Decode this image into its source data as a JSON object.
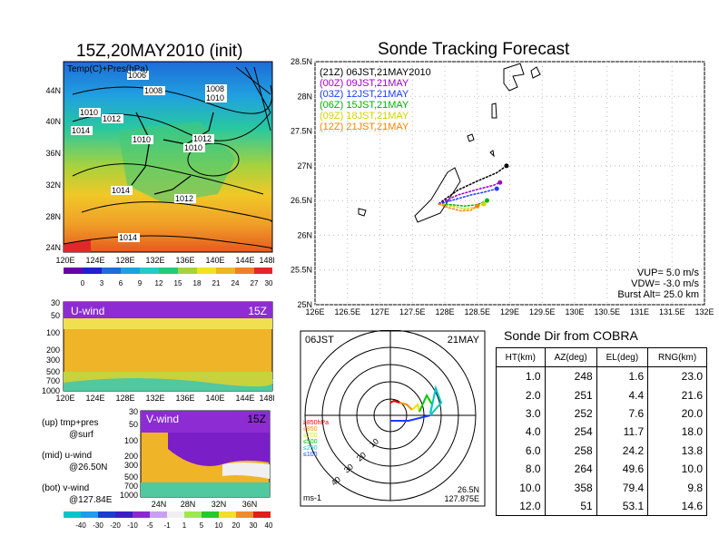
{
  "left_title": "15Z,20MAY2010 (init)",
  "map_panel": {
    "label": "Temp(C)+Pres(hPa)",
    "lat_ticks": [
      "44N",
      "40N",
      "36N",
      "32N",
      "28N",
      "24N"
    ],
    "lon_ticks": [
      "120E",
      "124E",
      "128E",
      "132E",
      "136E",
      "140E",
      "144E",
      "148E"
    ],
    "isobar_labels": [
      "1006",
      "1008",
      "1008",
      "1010",
      "1010",
      "1012",
      "1014",
      "1010",
      "1012",
      "1010",
      "1014",
      "1012",
      "1014"
    ],
    "colorbar_ticks": [
      "0",
      "3",
      "6",
      "9",
      "12",
      "15",
      "18",
      "21",
      "24",
      "27",
      "30"
    ]
  },
  "uwind_panel": {
    "label": "U-wind",
    "time": "15Z",
    "p_ticks": [
      "30",
      "50",
      "100",
      "200",
      "300",
      "500",
      "700",
      "1000"
    ],
    "lon_ticks": [
      "120E",
      "124E",
      "128E",
      "132E",
      "136E",
      "140E",
      "144E",
      "148E"
    ]
  },
  "vwind_panel": {
    "label": "V-wind",
    "time": "15Z",
    "p_ticks": [
      "30",
      "50",
      "100",
      "200",
      "300",
      "500",
      "700",
      "1000"
    ],
    "lat_ticks": [
      "24N",
      "28N",
      "32N",
      "36N"
    ]
  },
  "notes": [
    "(up) tmp+pres",
    "@surf",
    "(mid) u-wind",
    "@26.50N",
    "(bot) v-wind",
    "@127.84E"
  ],
  "wind_colorbar_ticks": [
    "-40",
    "-30",
    "-20",
    "-10",
    "-5",
    "-1",
    "1",
    "5",
    "10",
    "20",
    "30",
    "40"
  ],
  "track": {
    "title": "Sonde Tracking Forecast",
    "legend": [
      {
        "tag": "(21Z)",
        "text": "06JST,21MAY2010",
        "color": "#000000"
      },
      {
        "tag": "(00Z)",
        "text": "09JST,21MAY",
        "color": "#a000c8"
      },
      {
        "tag": "(03Z)",
        "text": "12JST,21MAY",
        "color": "#1e3cff"
      },
      {
        "tag": "(06Z)",
        "text": "15JST,21MAY",
        "color": "#00b400"
      },
      {
        "tag": "(09Z)",
        "text": "18JST,21MAY",
        "color": "#d2d200"
      },
      {
        "tag": "(12Z)",
        "text": "21JST,21MAY",
        "color": "#ff8200"
      }
    ],
    "lat_ticks": [
      "28.5N",
      "28N",
      "27.5N",
      "27N",
      "26.5N",
      "26N",
      "25.5N",
      "25N"
    ],
    "lon_ticks": [
      "126E",
      "126.5E",
      "127E",
      "127.5E",
      "128E",
      "128.5E",
      "129E",
      "129.5E",
      "130E",
      "130.5E",
      "131E",
      "131.5E",
      "132E"
    ],
    "params": [
      "VUP= 5.0 m/s",
      "VDW= -3.0 m/s",
      "Burst Alt= 25.0 km"
    ]
  },
  "polar": {
    "time_left": "06JST",
    "time_right": "21MAY",
    "ring_labels": [
      "10",
      "20",
      "30",
      "40"
    ],
    "unit": "ms-1",
    "loc1": "26.5N",
    "loc2": "127.875E",
    "levels": [
      {
        "label": "≥850hPa",
        "color": "#e60000"
      },
      {
        "label": "≤850",
        "color": "#ff8c00"
      },
      {
        "label": "≤700",
        "color": "#e6e600"
      },
      {
        "label": "≤500",
        "color": "#00c800"
      },
      {
        "label": "≤250",
        "color": "#00c8c8"
      },
      {
        "label": "≤100",
        "color": "#1e3cff"
      }
    ]
  },
  "cobra": {
    "title": "Sonde Dir from COBRA",
    "headers": [
      "HT(km)",
      "AZ(deg)",
      "EL(deg)",
      "RNG(km)"
    ],
    "rows": [
      [
        "1.0",
        "248",
        "1.6",
        "23.0"
      ],
      [
        "2.0",
        "251",
        "4.4",
        "21.6"
      ],
      [
        "3.0",
        "252",
        "7.6",
        "20.0"
      ],
      [
        "4.0",
        "254",
        "11.7",
        "18.0"
      ],
      [
        "6.0",
        "258",
        "24.2",
        "13.8"
      ],
      [
        "8.0",
        "264",
        "49.6",
        "10.0"
      ],
      [
        "10.0",
        "358",
        "79.4",
        "9.8"
      ],
      [
        "12.0",
        "51",
        "53.1",
        "14.6"
      ]
    ]
  },
  "chart_data": [
    {
      "type": "heatmap",
      "title": "15Z,20MAY2010 (init)",
      "annotation": "Temp(C)+Pres(hPa)",
      "colorbar": [
        0,
        3,
        6,
        9,
        12,
        15,
        18,
        21,
        24,
        27,
        30
      ]
    },
    {
      "type": "heatmap",
      "annotation": "U-wind",
      "time": "15Z"
    },
    {
      "type": "heatmap",
      "annotation": "V-wind",
      "time": "15Z",
      "colorbar": [
        -40,
        -30,
        -20,
        -10,
        -5,
        -1,
        1,
        5,
        10,
        20,
        30,
        40
      ]
    },
    {
      "type": "line",
      "title": "Sonde Tracking Forecast",
      "xlim": [
        126,
        132
      ],
      "ylim": [
        25,
        28.5
      ],
      "series": [
        {
          "name": "06JST,21MAY2010",
          "x": [
            127.9,
            128.2,
            128.5,
            128.8,
            128.95
          ],
          "y": [
            26.45,
            26.65,
            26.78,
            26.9,
            27.0
          ]
        },
        {
          "name": "09JST,21MAY",
          "x": [
            127.9,
            128.2,
            128.5,
            128.75,
            128.85
          ],
          "y": [
            26.45,
            26.58,
            26.66,
            26.72,
            26.76
          ]
        },
        {
          "name": "12JST,21MAY",
          "x": [
            127.9,
            128.1,
            128.4,
            128.6,
            128.8
          ],
          "y": [
            26.45,
            26.5,
            26.58,
            26.62,
            26.67
          ]
        },
        {
          "name": "15JST,21MAY",
          "x": [
            127.9,
            128.1,
            128.3,
            128.5,
            128.65
          ],
          "y": [
            26.45,
            26.44,
            26.42,
            26.44,
            26.5
          ]
        },
        {
          "name": "18JST,21MAY",
          "x": [
            127.9,
            128.1,
            128.3,
            128.45,
            128.6
          ],
          "y": [
            26.45,
            26.42,
            26.38,
            26.4,
            26.45
          ]
        },
        {
          "name": "21JST,21MAY",
          "x": [
            127.9,
            128.05,
            128.25,
            128.4,
            128.5
          ],
          "y": [
            26.45,
            26.4,
            26.35,
            26.36,
            26.42
          ]
        }
      ]
    },
    {
      "type": "table",
      "title": "Sonde Dir from COBRA",
      "columns": [
        "HT(km)",
        "AZ(deg)",
        "EL(deg)",
        "RNG(km)"
      ],
      "rows": [
        [
          1.0,
          248,
          1.6,
          23.0
        ],
        [
          2.0,
          251,
          4.4,
          21.6
        ],
        [
          3.0,
          252,
          7.6,
          20.0
        ],
        [
          4.0,
          254,
          11.7,
          18.0
        ],
        [
          6.0,
          258,
          24.2,
          13.8
        ],
        [
          8.0,
          264,
          49.6,
          10.0
        ],
        [
          10.0,
          358,
          79.4,
          9.8
        ],
        [
          12.0,
          51,
          53.1,
          14.6
        ]
      ]
    }
  ]
}
